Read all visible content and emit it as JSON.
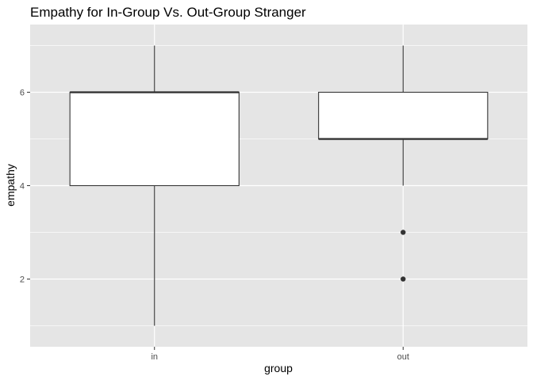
{
  "chart_data": {
    "type": "boxplot",
    "title": "Empathy for In-Group Vs. Out-Group Stranger",
    "xlabel": "group",
    "ylabel": "empathy",
    "categories": [
      "in",
      "out"
    ],
    "ylim": [
      0.55,
      7.45
    ],
    "y_ticks": [
      2,
      4,
      6
    ],
    "y_minor_ticks": [
      1,
      3,
      5,
      7
    ],
    "grid": true,
    "boxes": [
      {
        "category": "in",
        "whisker_low": 1,
        "q1": 4,
        "median": 6,
        "q3": 6,
        "whisker_high": 7,
        "outliers": []
      },
      {
        "category": "out",
        "whisker_low": 4,
        "q1": 5,
        "median": 5,
        "q3": 6,
        "whisker_high": 7,
        "outliers": [
          3,
          2
        ]
      }
    ],
    "colors": {
      "panel_bg": "#e5e5e5",
      "grid": "#ffffff",
      "box_fill": "#ffffff",
      "box_stroke": "#333333",
      "outlier": "#333333"
    }
  }
}
